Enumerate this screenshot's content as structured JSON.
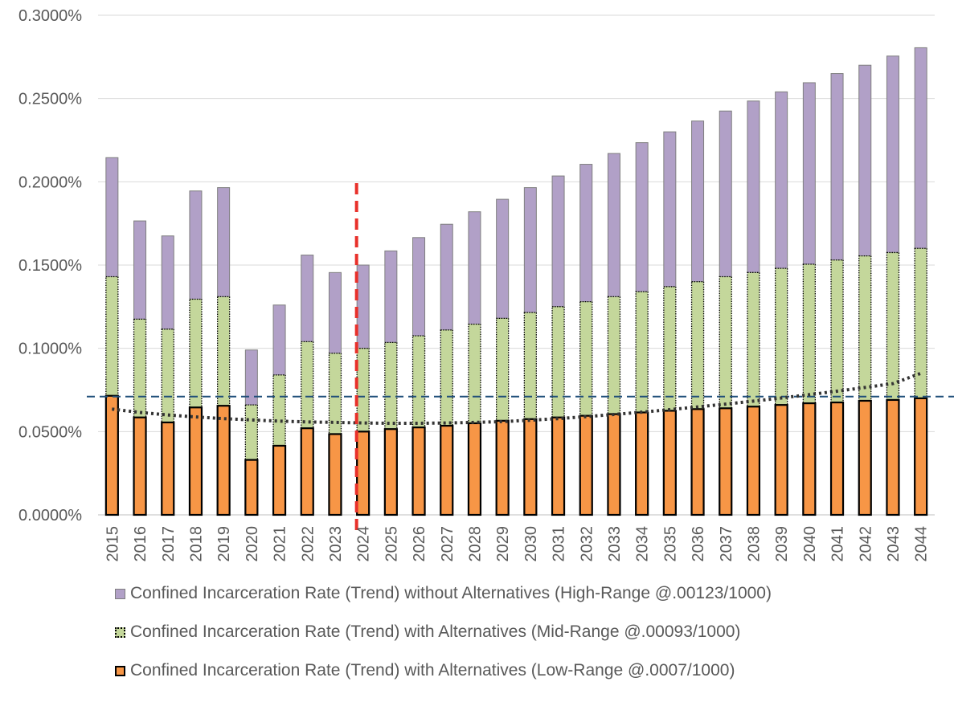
{
  "chart_data": {
    "type": "bar",
    "stacked": true,
    "categories": [
      "2015",
      "2016",
      "2017",
      "2018",
      "2019",
      "2020",
      "2021",
      "2022",
      "2023",
      "2024",
      "2025",
      "2026",
      "2027",
      "2028",
      "2029",
      "2030",
      "2031",
      "2032",
      "2033",
      "2034",
      "2035",
      "2036",
      "2037",
      "2038",
      "2039",
      "2040",
      "2041",
      "2042",
      "2043",
      "2044"
    ],
    "series": [
      {
        "name": "Confined Incarceration Rate (Trend) with Alternatives (Low-Range @.0007/1000)",
        "color": "#F79646",
        "border": "#000000",
        "totals": [
          0.0715,
          0.0585,
          0.0555,
          0.0645,
          0.0655,
          0.033,
          0.0415,
          0.052,
          0.0485,
          0.05,
          0.0515,
          0.0525,
          0.0535,
          0.055,
          0.0565,
          0.0575,
          0.0585,
          0.0595,
          0.0605,
          0.0615,
          0.0625,
          0.0635,
          0.064,
          0.065,
          0.066,
          0.067,
          0.0675,
          0.0685,
          0.069,
          0.07
        ]
      },
      {
        "name": "Confined Incarceration Rate (Trend) with Alternatives (Mid-Range @.00093/1000)",
        "color": "#C4D79B",
        "border": "#000000",
        "totals": [
          0.143,
          0.1175,
          0.1115,
          0.1295,
          0.131,
          0.066,
          0.084,
          0.104,
          0.097,
          0.1,
          0.1035,
          0.1075,
          0.111,
          0.1145,
          0.118,
          0.1215,
          0.125,
          0.128,
          0.131,
          0.134,
          0.137,
          0.14,
          0.143,
          0.1455,
          0.148,
          0.1505,
          0.153,
          0.1555,
          0.1575,
          0.16
        ]
      },
      {
        "name": "Confined Incarceration Rate (Trend) without Alternatives (High-Range @.00123/1000)",
        "color": "#B1A0C7",
        "border": "#7F7F7F",
        "totals": [
          0.2145,
          0.1765,
          0.1675,
          0.1945,
          0.1965,
          0.099,
          0.126,
          0.156,
          0.1455,
          0.15,
          0.1585,
          0.1665,
          0.1745,
          0.182,
          0.1895,
          0.1965,
          0.2035,
          0.2105,
          0.217,
          0.2235,
          0.23,
          0.2365,
          0.2425,
          0.2485,
          0.254,
          0.2595,
          0.265,
          0.27,
          0.2755,
          0.2805
        ]
      }
    ],
    "trendline": {
      "style": "dotted",
      "color": "#333333",
      "values": [
        0.0635,
        0.0615,
        0.06,
        0.0588,
        0.0578,
        0.057,
        0.0563,
        0.0558,
        0.0555,
        0.0552,
        0.055,
        0.055,
        0.0552,
        0.0555,
        0.056,
        0.0568,
        0.0578,
        0.059,
        0.0603,
        0.0617,
        0.0632,
        0.0648,
        0.0665,
        0.0683,
        0.0702,
        0.0722,
        0.0743,
        0.0765,
        0.0788,
        0.085
      ]
    },
    "reference_line": {
      "y": 0.071,
      "style": "dashed",
      "color": "#1F4E79"
    },
    "marker_line": {
      "x": "2024",
      "style": "dashed",
      "color": "#E8302A"
    },
    "ylim": [
      0,
      0.3
    ],
    "yticks": [
      0,
      0.05,
      0.1,
      0.15,
      0.2,
      0.25,
      0.3
    ],
    "ytick_labels": [
      "0.0000%",
      "0.0500%",
      "0.1000%",
      "0.1500%",
      "0.2000%",
      "0.2500%",
      "0.3000%"
    ],
    "grid": true,
    "legend_position": "bottom",
    "title": "",
    "xlabel": "",
    "ylabel": ""
  },
  "legend": [
    {
      "label": "Confined Incarceration Rate (Trend) without Alternatives (High-Range @.00123/1000)",
      "swatch": "high"
    },
    {
      "label": "Confined Incarceration Rate (Trend) with Alternatives (Mid-Range @.00093/1000)",
      "swatch": "mid"
    },
    {
      "label": "Confined Incarceration Rate (Trend) with Alternatives (Low-Range @.0007/1000)",
      "swatch": "low"
    }
  ]
}
